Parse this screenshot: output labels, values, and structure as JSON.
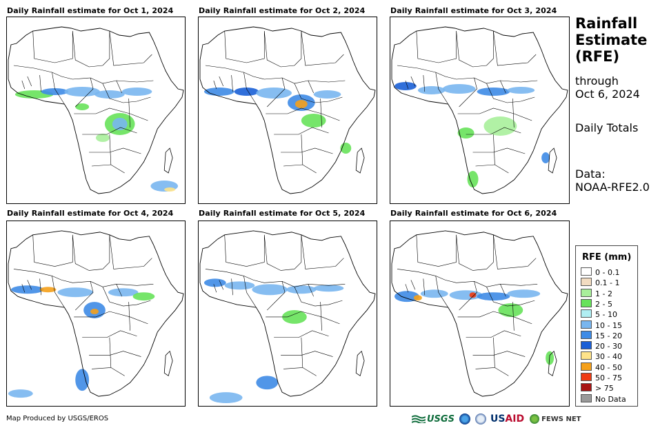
{
  "panels": [
    {
      "title": "Daily Rainfall estimate for Oct 1, 2024"
    },
    {
      "title": "Daily Rainfall estimate for Oct 2, 2024"
    },
    {
      "title": "Daily Rainfall estimate for Oct 3, 2024"
    },
    {
      "title": "Daily Rainfall estimate for Oct 4, 2024"
    },
    {
      "title": "Daily Rainfall estimate for Oct 5, 2024"
    },
    {
      "title": "Daily Rainfall estimate for Oct 6, 2024"
    }
  ],
  "sidebar": {
    "title_line1": "Rainfall",
    "title_line2": "Estimate",
    "title_line3": "(RFE)",
    "through_label": "through",
    "through_date": "Oct 6, 2024",
    "period": "Daily Totals",
    "data_label": "Data:",
    "data_source": "NOAA-RFE2.0"
  },
  "legend": {
    "title": "RFE (mm)",
    "items": [
      {
        "label": "0 - 0.1",
        "color": "#ffffff"
      },
      {
        "label": "0.1 - 1",
        "color": "#f2dcc1"
      },
      {
        "label": "1 - 2",
        "color": "#a9ef9b"
      },
      {
        "label": "2 - 5",
        "color": "#67e25a"
      },
      {
        "label": "5 - 10",
        "color": "#b0eef2"
      },
      {
        "label": "10 - 15",
        "color": "#79b6ef"
      },
      {
        "label": "15 - 20",
        "color": "#3e8be6"
      },
      {
        "label": "20 - 30",
        "color": "#1a5fd6"
      },
      {
        "label": "30 - 40",
        "color": "#ffe38a"
      },
      {
        "label": "40 - 50",
        "color": "#f5a01a"
      },
      {
        "label": "50 - 75",
        "color": "#ef3a12"
      },
      {
        "label": "> 75",
        "color": "#a81414"
      },
      {
        "label": "No Data",
        "color": "#9a9a9a"
      }
    ]
  },
  "footer": {
    "credit": "Map Produced by USGS/EROS",
    "logo_usgs": "USGS",
    "logo_usaid_us": "US",
    "logo_usaid_aid": "AID",
    "logo_fews": "FEWS NET"
  }
}
